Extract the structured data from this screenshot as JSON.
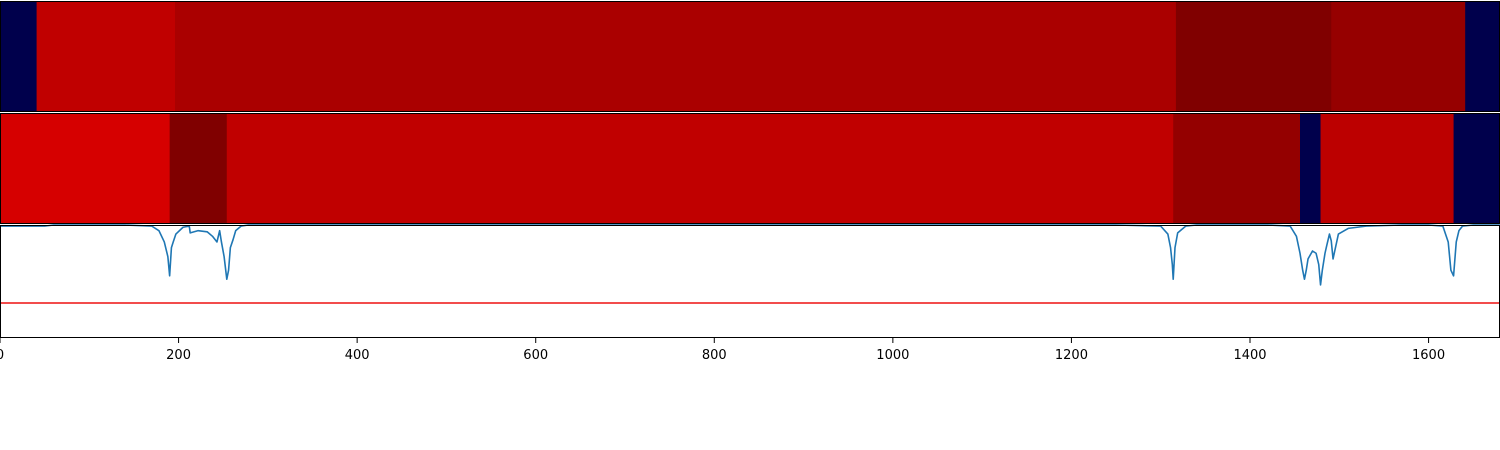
{
  "chart_data": {
    "type": "heatmap",
    "title": "",
    "xlabel": "",
    "ylabel": "",
    "xlim": [
      0,
      1680
    ],
    "x_ticks": [
      {
        "value": 0,
        "label": "0"
      },
      {
        "value": 200,
        "label": "200"
      },
      {
        "value": 400,
        "label": "400"
      },
      {
        "value": 600,
        "label": "600"
      },
      {
        "value": 800,
        "label": "800"
      },
      {
        "value": 1000,
        "label": "1000"
      },
      {
        "value": 1200,
        "label": "1200"
      },
      {
        "value": 1400,
        "label": "1400"
      },
      {
        "value": 1600,
        "label": "1600"
      }
    ],
    "grid": false,
    "rows": [
      {
        "segments": [
          {
            "start": 0,
            "end": 41,
            "color": "#00004c"
          },
          {
            "start": 41,
            "end": 196,
            "color": "#c00000"
          },
          {
            "start": 196,
            "end": 1317,
            "color": "#aa0000"
          },
          {
            "start": 1317,
            "end": 1491,
            "color": "#800000"
          },
          {
            "start": 1491,
            "end": 1641,
            "color": "#960000"
          },
          {
            "start": 1641,
            "end": 1680,
            "color": "#00004c"
          }
        ]
      },
      {
        "segments": [
          {
            "start": 0,
            "end": 190,
            "color": "#d60000"
          },
          {
            "start": 190,
            "end": 254,
            "color": "#800000"
          },
          {
            "start": 254,
            "end": 1314,
            "color": "#c00000"
          },
          {
            "start": 1314,
            "end": 1456,
            "color": "#940000"
          },
          {
            "start": 1456,
            "end": 1479,
            "color": "#00004c"
          },
          {
            "start": 1479,
            "end": 1628,
            "color": "#bc0000"
          },
          {
            "start": 1628,
            "end": 1680,
            "color": "#00004c"
          }
        ]
      }
    ],
    "line_panel": {
      "ylim": [
        0,
        1
      ],
      "threshold": {
        "value": 0.31,
        "color": "#ee1111"
      },
      "series": [
        {
          "color": "#1f77b4",
          "x": [
            0,
            50,
            60,
            80,
            140,
            170,
            178,
            184,
            188,
            190,
            192,
            194,
            197,
            205,
            212,
            213,
            222,
            232,
            238,
            243,
            246,
            248,
            251,
            254,
            256,
            258,
            261,
            264,
            270,
            278,
            300,
            1250,
            1300,
            1308,
            1311,
            1313,
            1314,
            1316,
            1319,
            1328,
            1340,
            1420,
            1445,
            1452,
            1456,
            1459,
            1461,
            1463,
            1465,
            1470,
            1474,
            1477,
            1479,
            1481,
            1484,
            1486,
            1489,
            1491,
            1493,
            1499,
            1510,
            1530,
            1570,
            1600,
            1616,
            1622,
            1625,
            1628,
            1631,
            1634,
            1638,
            1650,
            1680
          ],
          "y": [
            0.99,
            0.99,
            1.0,
            1.0,
            1.0,
            0.99,
            0.95,
            0.85,
            0.72,
            0.55,
            0.8,
            0.85,
            0.92,
            0.98,
            0.99,
            0.93,
            0.95,
            0.94,
            0.9,
            0.85,
            0.95,
            0.85,
            0.72,
            0.52,
            0.6,
            0.8,
            0.87,
            0.95,
            0.99,
            1.0,
            1.0,
            1.0,
            0.99,
            0.92,
            0.8,
            0.65,
            0.52,
            0.8,
            0.93,
            0.99,
            1.0,
            1.0,
            0.99,
            0.9,
            0.75,
            0.6,
            0.52,
            0.6,
            0.7,
            0.77,
            0.75,
            0.65,
            0.47,
            0.6,
            0.75,
            0.82,
            0.92,
            0.86,
            0.7,
            0.92,
            0.97,
            0.99,
            1.0,
            1.0,
            0.99,
            0.85,
            0.6,
            0.55,
            0.85,
            0.95,
            0.99,
            1.0,
            1.0
          ]
        }
      ]
    }
  }
}
